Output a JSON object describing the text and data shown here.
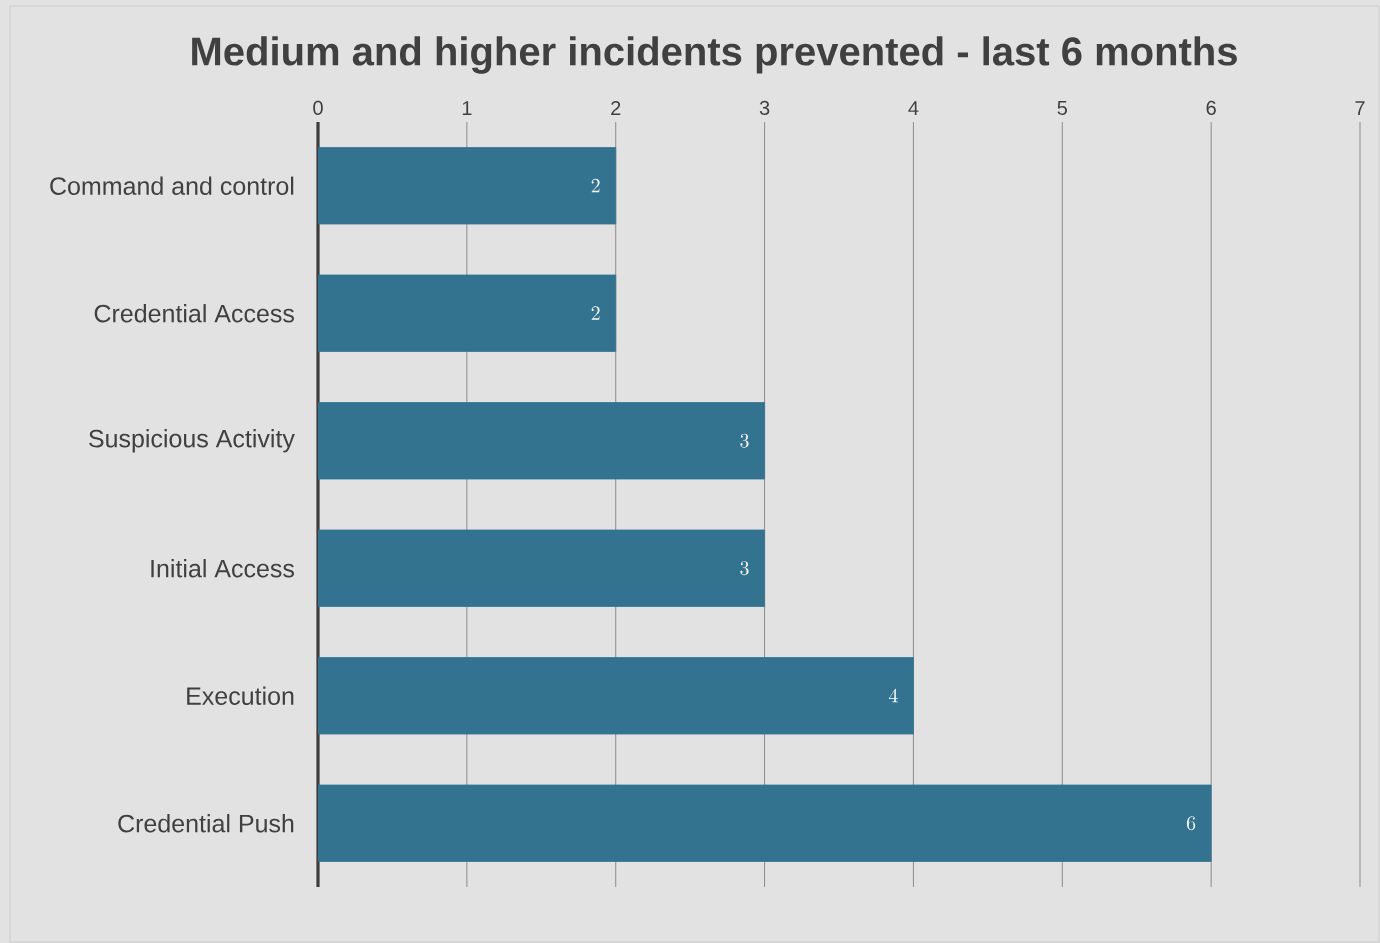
{
  "chart_data": {
    "type": "bar",
    "orientation": "horizontal",
    "title": "Medium and higher incidents prevented - last 6 months",
    "categories": [
      "Command and control",
      "Credential Access",
      "Suspicious Activity",
      "Initial Access",
      "Execution",
      "Credential Push"
    ],
    "values": [
      2,
      2,
      3,
      3,
      4,
      6
    ],
    "color": "#33738f",
    "xlim": [
      0,
      7
    ],
    "xticks": [
      0,
      1,
      2,
      3,
      4,
      5,
      6,
      7
    ],
    "grid": "x",
    "data_labels": true
  }
}
